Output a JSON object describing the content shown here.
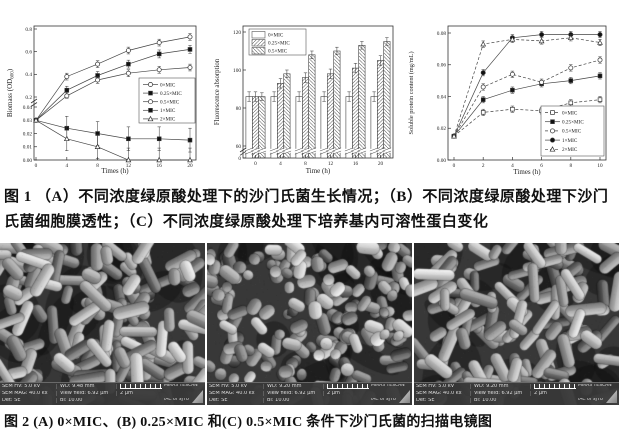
{
  "captions": {
    "fig1": "图 1 （A）不同浓度绿原酸处理下的沙门氏菌生长情况；（B）不同浓度绿原酸处理下沙门氏菌细胞膜透性；（C）不同浓度绿原酸处理下培养基内可溶性蛋白变化",
    "fig2": "图 2 (A) 0×MIC、(B) 0.25×MIC 和(C) 0.5×MIC 条件下沙门氏菌的扫描电镜图"
  },
  "chart_data": [
    {
      "type": "line",
      "panel": "A",
      "xlabel": "Times (h)",
      "ylabel": "Biomass (OD600)",
      "ylabel_parts": [
        "Biomass (OD",
        "600",
        ")"
      ],
      "x": [
        0,
        4,
        8,
        12,
        16,
        20
      ],
      "y_break": {
        "low": [
          0,
          0.04
        ],
        "high": [
          0.2,
          0.8
        ]
      },
      "yticks_low": [
        0.0,
        0.01,
        0.02,
        0.03,
        0.04
      ],
      "yticks_high": [
        0.2,
        0.4,
        0.6,
        0.8
      ],
      "legend_pos": "right-center",
      "series": [
        {
          "name": "0×MIC",
          "marker": "circle-open",
          "line": "solid",
          "err": 0.03,
          "values": [
            0.03,
            0.38,
            0.49,
            0.61,
            0.68,
            0.73
          ]
        },
        {
          "name": "0.25×MIC",
          "marker": "square-filled",
          "line": "solid",
          "err": 0.035,
          "values": [
            0.03,
            0.26,
            0.39,
            0.49,
            0.58,
            0.62
          ]
        },
        {
          "name": "0.5×MIC",
          "marker": "circle-open",
          "line": "solid",
          "err": 0.03,
          "values": [
            0.03,
            0.21,
            0.35,
            0.41,
            0.44,
            0.46
          ]
        },
        {
          "name": "1×MIC",
          "marker": "square-filled",
          "line": "solid",
          "err": 0.009,
          "values": [
            0.03,
            0.024,
            0.02,
            0.016,
            0.016,
            0.015
          ]
        },
        {
          "name": "2×MIC",
          "marker": "triangle-open",
          "line": "solid",
          "err": 0.009,
          "values": [
            0.03,
            0.016,
            0.01,
            0.0,
            0.0,
            0.0
          ]
        }
      ]
    },
    {
      "type": "bar",
      "panel": "B",
      "xlabel": "Time (h)",
      "ylabel": "Fluorescence absorption",
      "categories": [
        0,
        4,
        8,
        12,
        16,
        20
      ],
      "y_break": {
        "low": [
          0,
          60
        ],
        "high": [
          60,
          120
        ]
      },
      "yticks": [
        0,
        60,
        80,
        100,
        120
      ],
      "legend_pos": "top-left",
      "series": [
        {
          "name": "0×MIC",
          "pattern": "plain",
          "err": 2.5,
          "values": [
            86,
            86,
            86,
            86,
            86,
            86
          ]
        },
        {
          "name": "0.25×MIC",
          "pattern": "hatch-fwd",
          "err": 2.5,
          "values": [
            86,
            93,
            96,
            98,
            101,
            105
          ]
        },
        {
          "name": "0.5×MIC",
          "pattern": "hatch-back",
          "err": 2.0,
          "values": [
            86,
            98,
            108,
            110,
            113,
            115
          ]
        }
      ]
    },
    {
      "type": "line",
      "panel": "C",
      "xlabel": "Times (h)",
      "ylabel": "Soluble protein content (mg/mL)",
      "x": [
        0,
        2,
        4,
        6,
        8,
        10
      ],
      "ylim": [
        0,
        0.08
      ],
      "yticks": [
        0.0,
        0.02,
        0.04,
        0.06,
        0.08
      ],
      "legend_pos": "bottom-right",
      "series": [
        {
          "name": "0×MIC",
          "marker": "square-open",
          "line": "dashed",
          "err": 0.002,
          "values": [
            0.015,
            0.03,
            0.032,
            0.031,
            0.036,
            0.038
          ]
        },
        {
          "name": "0.25×MIC",
          "marker": "square-filled",
          "line": "solid",
          "err": 0.002,
          "values": [
            0.015,
            0.038,
            0.044,
            0.048,
            0.05,
            0.053
          ]
        },
        {
          "name": "0.5×MIC",
          "marker": "circle-open",
          "line": "dashed",
          "err": 0.002,
          "values": [
            0.015,
            0.046,
            0.054,
            0.049,
            0.058,
            0.063
          ]
        },
        {
          "name": "1×MIC",
          "marker": "circle-filled",
          "line": "solid",
          "err": 0.002,
          "values": [
            0.015,
            0.055,
            0.077,
            0.079,
            0.079,
            0.079
          ]
        },
        {
          "name": "2×MIC",
          "marker": "triangle-open",
          "line": "dashed",
          "err": 0.002,
          "values": [
            0.015,
            0.073,
            0.076,
            0.075,
            0.077,
            0.074
          ]
        }
      ]
    }
  ],
  "sem_images": [
    {
      "label": "A",
      "sem_hv": "SEM HV: 5.0 kV",
      "wd": "WD: 9.48 mm",
      "mag": "SEM MAG: 40.0 kx",
      "view_field": "View field: 6.92 μm",
      "det": "Det: SE",
      "bi": "BI: 10.00",
      "scale": "2 μm",
      "brand": "MIRA3 TESCAN",
      "lab": "IAC of SJTU"
    },
    {
      "label": "B",
      "sem_hv": "SEM HV: 5.0 kV",
      "wd": "WD: 9.20 mm",
      "mag": "SEM MAG: 40.0 kx",
      "view_field": "View field: 6.92 μm",
      "det": "Det: SE",
      "bi": "BI: 10.00",
      "scale": "2 μm",
      "brand": "MIRA3 TESCAN",
      "lab": "IAC of SJTU"
    },
    {
      "label": "C",
      "sem_hv": "SEM HV: 5.0 kV",
      "wd": "WD: 9.20 mm",
      "mag": "SEM MAG: 40.0 kx",
      "view_field": "View field: 6.92 μm",
      "det": "Det: SE",
      "bi": "BI: 10.00",
      "scale": "2 μm",
      "brand": "MIRA3 TESCAN",
      "lab": "IAC of SJTU"
    }
  ],
  "colors": {
    "ink": "#222",
    "axis": "#333",
    "line": "#444",
    "sem_bar_bg": "#383838"
  }
}
